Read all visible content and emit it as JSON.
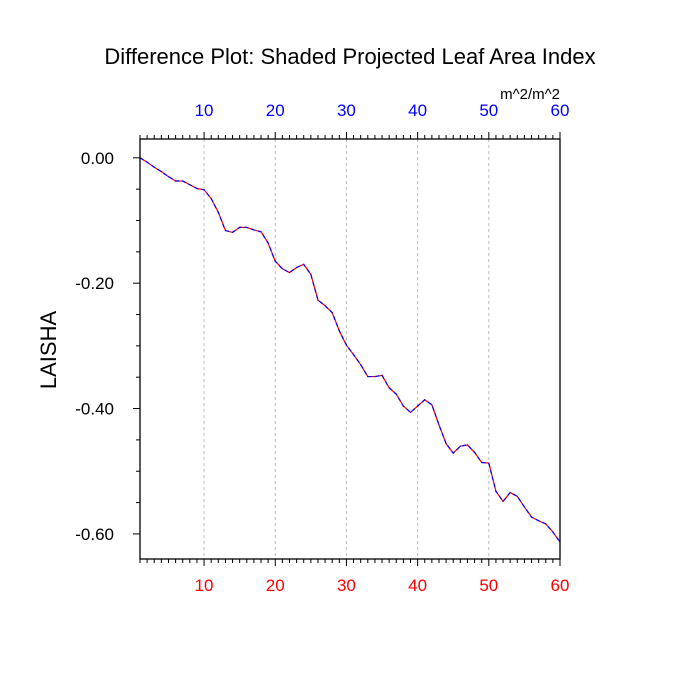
{
  "chart_data": {
    "type": "line",
    "title": "Difference Plot: Shaded Projected Leaf Area Index",
    "units": "m^2/m^2",
    "xlabel": "",
    "ylabel": "LAISHA",
    "xlim": [
      1,
      60
    ],
    "ylim": [
      -0.64,
      0.03
    ],
    "x_ticks": [
      10,
      20,
      30,
      40,
      50,
      60
    ],
    "x_tick_labels": [
      "10",
      "20",
      "30",
      "40",
      "50",
      "60"
    ],
    "y_ticks": [
      0.0,
      -0.2,
      -0.4,
      -0.6
    ],
    "y_tick_labels": [
      "0.00",
      "-0.20",
      "-0.40",
      "-0.60"
    ],
    "grid": "vertical dashed at major x ticks",
    "series": [
      {
        "x": [
          1,
          2,
          3,
          4,
          5,
          6,
          7,
          8,
          9,
          10,
          11,
          12,
          13,
          14,
          15,
          16,
          17,
          18,
          19,
          20,
          21,
          22,
          23,
          24,
          25,
          26,
          27,
          28,
          29,
          30,
          31,
          32,
          33,
          34,
          35,
          36,
          37,
          38,
          39,
          40,
          41,
          42,
          43,
          44,
          45,
          46,
          47,
          48,
          49,
          50,
          51,
          52,
          53,
          54,
          55,
          56,
          57,
          58,
          59,
          60
        ],
        "y": [
          0.0,
          -0.007,
          -0.015,
          -0.022,
          -0.03,
          -0.037,
          -0.037,
          -0.043,
          -0.049,
          -0.051,
          -0.065,
          -0.087,
          -0.116,
          -0.119,
          -0.111,
          -0.111,
          -0.115,
          -0.118,
          -0.136,
          -0.165,
          -0.177,
          -0.183,
          -0.175,
          -0.17,
          -0.186,
          -0.227,
          -0.236,
          -0.247,
          -0.276,
          -0.299,
          -0.314,
          -0.33,
          -0.349,
          -0.349,
          -0.347,
          -0.367,
          -0.377,
          -0.396,
          -0.406,
          -0.396,
          -0.386,
          -0.394,
          -0.426,
          -0.456,
          -0.471,
          -0.46,
          -0.458,
          -0.47,
          -0.486,
          -0.487,
          -0.532,
          -0.548,
          -0.534,
          -0.54,
          -0.557,
          -0.573,
          -0.579,
          -0.584,
          -0.597,
          -0.613
        ],
        "line_colors": [
          "#ff0000",
          "#0000ff"
        ],
        "line_style": "dashed"
      }
    ],
    "colors": {
      "bottom_axis_labels": "#ff0000",
      "top_axis_labels": "#0000ff",
      "frame": "#000000",
      "grid": "#bbbbbb"
    }
  }
}
